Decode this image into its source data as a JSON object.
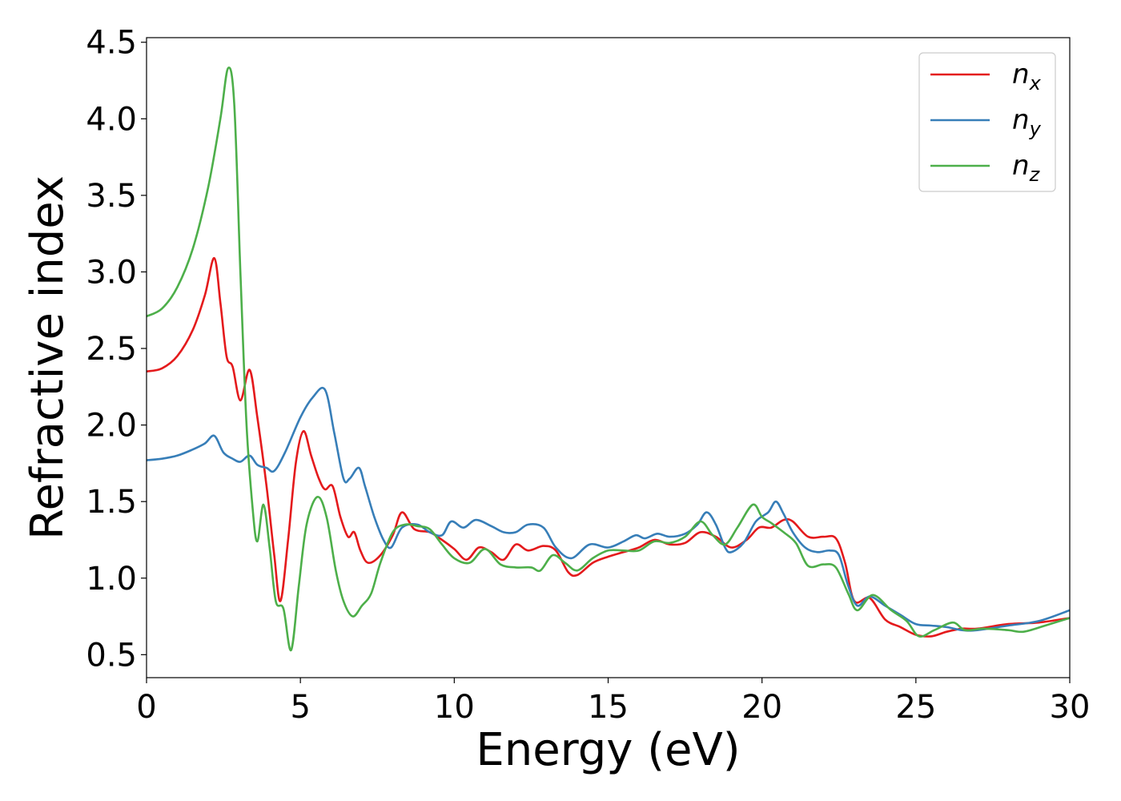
{
  "chart_data": {
    "type": "line",
    "title": "",
    "xlabel": "Energy (eV)",
    "ylabel": "Refractive index",
    "xlim": [
      0,
      30
    ],
    "ylim": [
      0.35,
      4.53
    ],
    "xticks": [
      0,
      5,
      10,
      15,
      20,
      25,
      30
    ],
    "xtick_labels": [
      "0",
      "5",
      "10",
      "15",
      "20",
      "25",
      "30"
    ],
    "yticks": [
      0.5,
      1.0,
      1.5,
      2.0,
      2.5,
      3.0,
      3.5,
      4.0,
      4.5
    ],
    "ytick_labels": [
      "0.5",
      "1.0",
      "1.5",
      "2.0",
      "2.5",
      "3.0",
      "3.5",
      "4.0",
      "4.5"
    ],
    "grid": false,
    "legend_position": "top-right",
    "series": [
      {
        "name": "n_x",
        "label_base": "n",
        "label_sub": "x",
        "color": "#e41a1c",
        "points": [
          [
            0,
            2.35
          ],
          [
            0.5,
            2.37
          ],
          [
            1,
            2.45
          ],
          [
            1.5,
            2.62
          ],
          [
            1.9,
            2.85
          ],
          [
            2.2,
            3.09
          ],
          [
            2.4,
            2.8
          ],
          [
            2.6,
            2.45
          ],
          [
            2.8,
            2.38
          ],
          [
            3.05,
            2.16
          ],
          [
            3.35,
            2.36
          ],
          [
            3.6,
            2.05
          ],
          [
            3.9,
            1.6
          ],
          [
            4.15,
            1.15
          ],
          [
            4.35,
            0.85
          ],
          [
            4.6,
            1.25
          ],
          [
            4.85,
            1.75
          ],
          [
            5.1,
            1.96
          ],
          [
            5.35,
            1.8
          ],
          [
            5.6,
            1.65
          ],
          [
            5.8,
            1.58
          ],
          [
            6.05,
            1.6
          ],
          [
            6.3,
            1.4
          ],
          [
            6.55,
            1.27
          ],
          [
            6.75,
            1.3
          ],
          [
            6.95,
            1.18
          ],
          [
            7.2,
            1.1
          ],
          [
            7.6,
            1.15
          ],
          [
            8,
            1.28
          ],
          [
            8.3,
            1.43
          ],
          [
            8.7,
            1.32
          ],
          [
            9.2,
            1.3
          ],
          [
            9.6,
            1.25
          ],
          [
            10,
            1.19
          ],
          [
            10.4,
            1.12
          ],
          [
            10.8,
            1.2
          ],
          [
            11.2,
            1.17
          ],
          [
            11.6,
            1.12
          ],
          [
            12,
            1.22
          ],
          [
            12.4,
            1.18
          ],
          [
            12.9,
            1.21
          ],
          [
            13.3,
            1.18
          ],
          [
            13.7,
            1.04
          ],
          [
            14,
            1.02
          ],
          [
            14.5,
            1.1
          ],
          [
            15,
            1.14
          ],
          [
            15.5,
            1.17
          ],
          [
            16,
            1.2
          ],
          [
            16.5,
            1.25
          ],
          [
            17,
            1.22
          ],
          [
            17.5,
            1.23
          ],
          [
            18,
            1.3
          ],
          [
            18.5,
            1.27
          ],
          [
            19,
            1.2
          ],
          [
            19.5,
            1.25
          ],
          [
            19.9,
            1.33
          ],
          [
            20.3,
            1.33
          ],
          [
            20.7,
            1.38
          ],
          [
            21,
            1.37
          ],
          [
            21.5,
            1.27
          ],
          [
            22,
            1.27
          ],
          [
            22.4,
            1.26
          ],
          [
            22.7,
            1.1
          ],
          [
            23,
            0.85
          ],
          [
            23.5,
            0.87
          ],
          [
            24,
            0.73
          ],
          [
            24.5,
            0.68
          ],
          [
            25,
            0.63
          ],
          [
            25.5,
            0.62
          ],
          [
            26,
            0.65
          ],
          [
            26.5,
            0.67
          ],
          [
            27,
            0.67
          ],
          [
            28,
            0.7
          ],
          [
            29,
            0.71
          ],
          [
            30,
            0.74
          ]
        ]
      },
      {
        "name": "n_y",
        "label_base": "n",
        "label_sub": "y",
        "color": "#377eb8",
        "points": [
          [
            0,
            1.77
          ],
          [
            0.5,
            1.78
          ],
          [
            1,
            1.8
          ],
          [
            1.5,
            1.84
          ],
          [
            1.9,
            1.88
          ],
          [
            2.2,
            1.93
          ],
          [
            2.5,
            1.82
          ],
          [
            2.8,
            1.78
          ],
          [
            3.05,
            1.76
          ],
          [
            3.35,
            1.8
          ],
          [
            3.6,
            1.74
          ],
          [
            3.9,
            1.72
          ],
          [
            4.15,
            1.7
          ],
          [
            4.5,
            1.82
          ],
          [
            5,
            2.05
          ],
          [
            5.4,
            2.18
          ],
          [
            5.8,
            2.23
          ],
          [
            6.1,
            1.95
          ],
          [
            6.4,
            1.65
          ],
          [
            6.6,
            1.65
          ],
          [
            6.9,
            1.72
          ],
          [
            7.1,
            1.6
          ],
          [
            7.4,
            1.4
          ],
          [
            7.7,
            1.25
          ],
          [
            7.95,
            1.2
          ],
          [
            8.3,
            1.33
          ],
          [
            8.8,
            1.35
          ],
          [
            9.2,
            1.3
          ],
          [
            9.6,
            1.28
          ],
          [
            9.9,
            1.37
          ],
          [
            10.3,
            1.33
          ],
          [
            10.7,
            1.38
          ],
          [
            11.2,
            1.34
          ],
          [
            11.6,
            1.3
          ],
          [
            12,
            1.3
          ],
          [
            12.4,
            1.35
          ],
          [
            12.9,
            1.33
          ],
          [
            13.3,
            1.2
          ],
          [
            13.8,
            1.13
          ],
          [
            14.4,
            1.22
          ],
          [
            15,
            1.2
          ],
          [
            15.5,
            1.24
          ],
          [
            15.9,
            1.28
          ],
          [
            16.2,
            1.26
          ],
          [
            16.6,
            1.29
          ],
          [
            17,
            1.27
          ],
          [
            17.5,
            1.29
          ],
          [
            17.9,
            1.35
          ],
          [
            18.2,
            1.43
          ],
          [
            18.5,
            1.35
          ],
          [
            18.8,
            1.2
          ],
          [
            19,
            1.17
          ],
          [
            19.4,
            1.23
          ],
          [
            19.8,
            1.37
          ],
          [
            20.2,
            1.43
          ],
          [
            20.45,
            1.5
          ],
          [
            20.7,
            1.42
          ],
          [
            21,
            1.3
          ],
          [
            21.4,
            1.2
          ],
          [
            21.8,
            1.17
          ],
          [
            22.2,
            1.18
          ],
          [
            22.5,
            1.15
          ],
          [
            22.8,
            0.95
          ],
          [
            23.1,
            0.82
          ],
          [
            23.5,
            0.88
          ],
          [
            24,
            0.82
          ],
          [
            24.5,
            0.76
          ],
          [
            25,
            0.7
          ],
          [
            25.5,
            0.69
          ],
          [
            26,
            0.68
          ],
          [
            26.5,
            0.66
          ],
          [
            27,
            0.66
          ],
          [
            28,
            0.69
          ],
          [
            29,
            0.72
          ],
          [
            30,
            0.79
          ]
        ]
      },
      {
        "name": "n_z",
        "label_base": "n",
        "label_sub": "z",
        "color": "#4daf4a",
        "points": [
          [
            0,
            2.71
          ],
          [
            0.5,
            2.76
          ],
          [
            1,
            2.9
          ],
          [
            1.5,
            3.15
          ],
          [
            2,
            3.55
          ],
          [
            2.4,
            4.0
          ],
          [
            2.65,
            4.33
          ],
          [
            2.85,
            4.1
          ],
          [
            3.05,
            3.0
          ],
          [
            3.25,
            2.0
          ],
          [
            3.45,
            1.45
          ],
          [
            3.6,
            1.24
          ],
          [
            3.8,
            1.48
          ],
          [
            4.0,
            1.2
          ],
          [
            4.2,
            0.85
          ],
          [
            4.45,
            0.8
          ],
          [
            4.7,
            0.53
          ],
          [
            4.95,
            0.95
          ],
          [
            5.2,
            1.35
          ],
          [
            5.55,
            1.53
          ],
          [
            5.85,
            1.4
          ],
          [
            6.15,
            1.05
          ],
          [
            6.4,
            0.85
          ],
          [
            6.7,
            0.75
          ],
          [
            7,
            0.82
          ],
          [
            7.3,
            0.9
          ],
          [
            7.6,
            1.1
          ],
          [
            8,
            1.3
          ],
          [
            8.4,
            1.35
          ],
          [
            8.8,
            1.34
          ],
          [
            9.2,
            1.32
          ],
          [
            9.6,
            1.22
          ],
          [
            10,
            1.13
          ],
          [
            10.5,
            1.1
          ],
          [
            11,
            1.19
          ],
          [
            11.5,
            1.09
          ],
          [
            12,
            1.07
          ],
          [
            12.5,
            1.07
          ],
          [
            12.8,
            1.05
          ],
          [
            13.2,
            1.15
          ],
          [
            13.6,
            1.1
          ],
          [
            14,
            1.05
          ],
          [
            14.5,
            1.13
          ],
          [
            15,
            1.18
          ],
          [
            15.5,
            1.18
          ],
          [
            16,
            1.18
          ],
          [
            16.5,
            1.24
          ],
          [
            17,
            1.23
          ],
          [
            17.5,
            1.27
          ],
          [
            18,
            1.37
          ],
          [
            18.4,
            1.28
          ],
          [
            18.8,
            1.22
          ],
          [
            19.2,
            1.33
          ],
          [
            19.7,
            1.48
          ],
          [
            20,
            1.4
          ],
          [
            20.3,
            1.36
          ],
          [
            20.7,
            1.3
          ],
          [
            21.1,
            1.23
          ],
          [
            21.5,
            1.08
          ],
          [
            22,
            1.09
          ],
          [
            22.4,
            1.07
          ],
          [
            22.8,
            0.9
          ],
          [
            23.1,
            0.79
          ],
          [
            23.6,
            0.89
          ],
          [
            24.2,
            0.79
          ],
          [
            24.7,
            0.72
          ],
          [
            25.1,
            0.62
          ],
          [
            25.6,
            0.66
          ],
          [
            26.2,
            0.71
          ],
          [
            26.6,
            0.66
          ],
          [
            27.2,
            0.67
          ],
          [
            28,
            0.66
          ],
          [
            28.5,
            0.65
          ],
          [
            29.2,
            0.69
          ],
          [
            30,
            0.74
          ]
        ]
      }
    ]
  }
}
